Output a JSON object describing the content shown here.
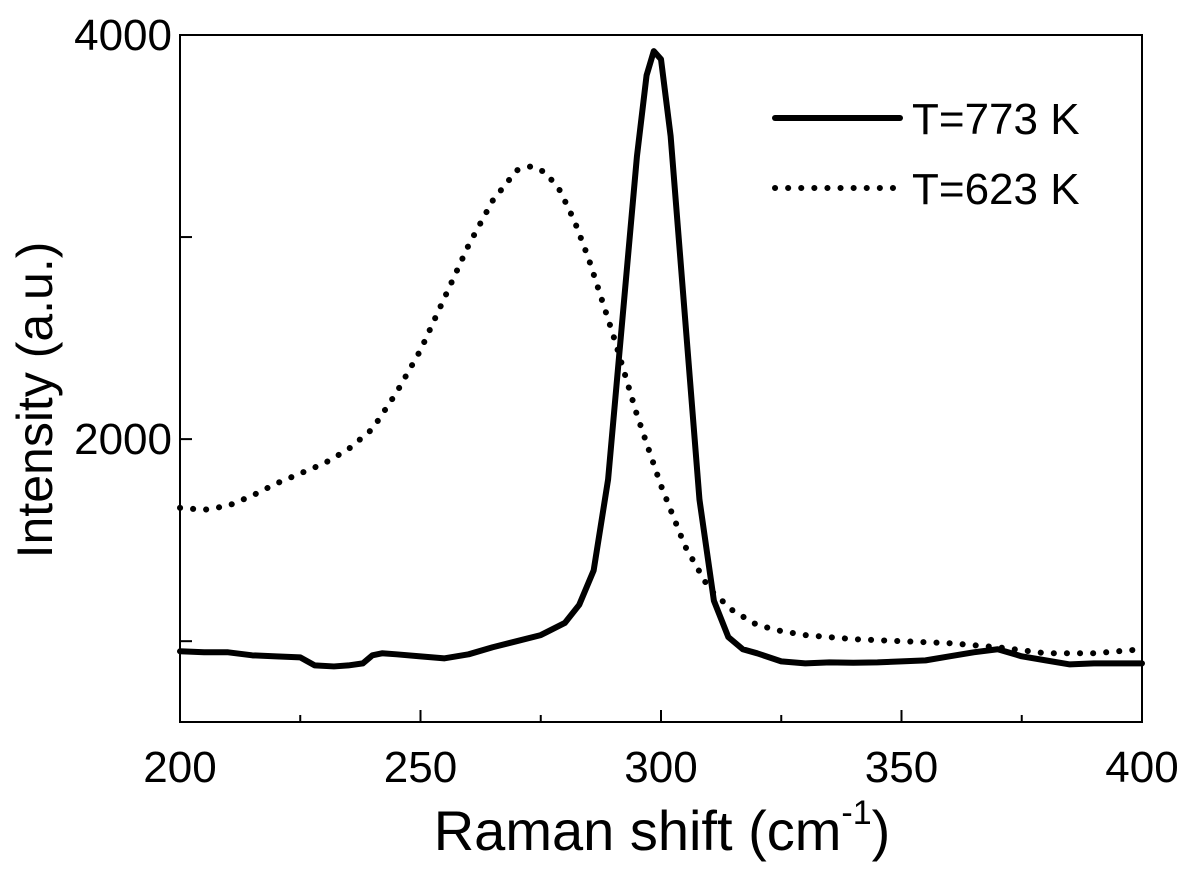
{
  "chart_data": {
    "type": "line",
    "xlabel": "Raman shift (cm",
    "xlabel_sup": "-1",
    "xlabel_close": ")",
    "ylabel": "Intensity (a.u.)",
    "xlim": [
      200,
      400
    ],
    "ylim": [
      600,
      4000
    ],
    "x_ticks": [
      200,
      250,
      300,
      350,
      400
    ],
    "x_tick_labels": [
      "200",
      "250",
      "300",
      "350",
      "400"
    ],
    "y_ticks": [
      1000,
      2000,
      3000,
      4000
    ],
    "y_tick_labels": [
      "",
      "2000",
      "",
      "4000"
    ],
    "grid": false,
    "legend_position": "top-right",
    "series": [
      {
        "name": "T=773 K",
        "style": "solid",
        "x": [
          200,
          205,
          210,
          215,
          220,
          225,
          228,
          232,
          235,
          238,
          240,
          242,
          245,
          250,
          255,
          260,
          265,
          270,
          275,
          280,
          283,
          286,
          289,
          292,
          295,
          297,
          298.5,
          300,
          302,
          305,
          308,
          311,
          314,
          317,
          320,
          325,
          330,
          335,
          340,
          345,
          350,
          355,
          360,
          365,
          370,
          375,
          380,
          385,
          390,
          395,
          400
        ],
        "y": [
          950,
          945,
          945,
          930,
          925,
          920,
          880,
          875,
          880,
          890,
          930,
          940,
          935,
          925,
          915,
          935,
          970,
          1000,
          1030,
          1090,
          1180,
          1350,
          1800,
          2600,
          3400,
          3800,
          3920,
          3880,
          3500,
          2600,
          1700,
          1200,
          1020,
          960,
          940,
          900,
          890,
          895,
          893,
          895,
          900,
          905,
          925,
          945,
          960,
          925,
          905,
          885,
          890,
          890,
          890
        ]
      },
      {
        "name": "T=623 K",
        "style": "dotted",
        "x": [
          200,
          205,
          210,
          215,
          220,
          225,
          230,
          235,
          240,
          245,
          250,
          255,
          260,
          265,
          270,
          273,
          276,
          279,
          282,
          285,
          290,
          295,
          300,
          305,
          310,
          315,
          320,
          325,
          330,
          340,
          350,
          360,
          370,
          380,
          390,
          400
        ],
        "y": [
          1660,
          1650,
          1670,
          1720,
          1780,
          1830,
          1880,
          1950,
          2050,
          2230,
          2440,
          2700,
          2960,
          3180,
          3330,
          3350,
          3320,
          3230,
          3080,
          2890,
          2520,
          2120,
          1770,
          1470,
          1260,
          1150,
          1080,
          1050,
          1030,
          1010,
          1000,
          990,
          970,
          940,
          940,
          960
        ]
      }
    ]
  }
}
